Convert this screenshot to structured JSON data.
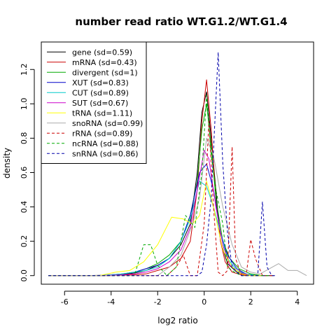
{
  "chart_data": {
    "type": "line",
    "title": "number read ratio WT.G1.2/WT.G1.4",
    "xlabel": "log2 ratio",
    "ylabel": "density",
    "xlim": [
      -7.0,
      4.7
    ],
    "ylim": [
      -0.05,
      1.36
    ],
    "xticks": [
      -6,
      -4,
      -2,
      0,
      2,
      4
    ],
    "yticks": [
      0.0,
      0.2,
      0.4,
      0.6,
      0.8,
      1.0,
      1.2
    ],
    "xtick_labels": [
      "-6",
      "-4",
      "-2",
      "0",
      "2",
      "4"
    ],
    "ytick_labels": [
      "0.0",
      "0.2",
      "0.4",
      "0.6",
      "0.8",
      "1.0",
      "1.2"
    ],
    "legend_position": "top-left",
    "grid": false,
    "series": [
      {
        "name": "gene (sd=0.59)",
        "color": "#000000",
        "dash": "solid",
        "x": [
          -6.7,
          -5.0,
          -4.0,
          -3.5,
          -3.0,
          -2.5,
          -2.0,
          -1.5,
          -1.0,
          -0.6,
          -0.3,
          -0.1,
          0.1,
          0.3,
          0.5,
          0.7,
          1.0,
          1.4,
          1.8,
          2.2,
          2.6,
          3.0
        ],
        "y": [
          0.0,
          0.0,
          0.003,
          0.008,
          0.015,
          0.03,
          0.06,
          0.1,
          0.18,
          0.3,
          0.6,
          0.95,
          1.07,
          0.8,
          0.5,
          0.2,
          0.07,
          0.02,
          0.005,
          0.002,
          0.0,
          0.0
        ]
      },
      {
        "name": "mRNA (sd=0.43)",
        "color": "#cc0000",
        "dash": "solid",
        "x": [
          -6.7,
          -4.0,
          -3.0,
          -2.5,
          -2.0,
          -1.5,
          -1.0,
          -0.6,
          -0.3,
          -0.1,
          0.1,
          0.3,
          0.5,
          0.7,
          0.9,
          1.2,
          1.6,
          2.0,
          2.5
        ],
        "y": [
          0.0,
          0.0,
          0.005,
          0.01,
          0.03,
          0.05,
          0.1,
          0.2,
          0.5,
          0.9,
          1.14,
          0.85,
          0.45,
          0.2,
          0.08,
          0.02,
          0.005,
          0.0,
          0.0
        ]
      },
      {
        "name": "divergent (sd=1)",
        "color": "#00aa00",
        "dash": "solid",
        "x": [
          -6.7,
          -4.5,
          -3.5,
          -3.0,
          -2.5,
          -2.0,
          -1.5,
          -1.0,
          -0.6,
          -0.3,
          -0.1,
          0.1,
          0.3,
          0.5,
          0.8,
          1.1,
          1.5,
          2.0,
          2.5
        ],
        "y": [
          0.0,
          0.0,
          0.01,
          0.02,
          0.04,
          0.07,
          0.12,
          0.2,
          0.35,
          0.55,
          0.85,
          1.0,
          0.75,
          0.45,
          0.2,
          0.1,
          0.04,
          0.01,
          0.0
        ]
      },
      {
        "name": "XUT (sd=0.83)",
        "color": "#0000cc",
        "dash": "solid",
        "x": [
          -6.7,
          -4.5,
          -3.5,
          -3.0,
          -2.5,
          -2.0,
          -1.5,
          -1.0,
          -0.6,
          -0.2,
          0.1,
          0.4,
          0.7,
          1.0,
          1.4,
          1.8,
          2.2,
          2.6
        ],
        "y": [
          0.0,
          0.0,
          0.01,
          0.02,
          0.04,
          0.06,
          0.1,
          0.2,
          0.35,
          0.6,
          0.65,
          0.5,
          0.25,
          0.12,
          0.04,
          0.01,
          0.0,
          0.0
        ]
      },
      {
        "name": "CUT (sd=0.89)",
        "color": "#00cccc",
        "dash": "solid",
        "x": [
          -6.7,
          -4.5,
          -3.5,
          -3.0,
          -2.5,
          -2.0,
          -1.5,
          -1.0,
          -0.6,
          -0.2,
          0.1,
          0.4,
          0.7,
          1.0,
          1.4,
          1.8,
          2.2
        ],
        "y": [
          0.0,
          0.0,
          0.01,
          0.02,
          0.03,
          0.05,
          0.1,
          0.2,
          0.33,
          0.55,
          0.52,
          0.4,
          0.25,
          0.1,
          0.03,
          0.01,
          0.0
        ]
      },
      {
        "name": "SUT (sd=0.67)",
        "color": "#cc00cc",
        "dash": "solid",
        "x": [
          -6.7,
          -4.5,
          -3.5,
          -3.0,
          -2.5,
          -2.0,
          -1.5,
          -1.0,
          -0.6,
          -0.3,
          0.0,
          0.2,
          0.5,
          0.8,
          1.1,
          1.5,
          2.0,
          2.5
        ],
        "y": [
          0.0,
          0.0,
          0.005,
          0.01,
          0.02,
          0.04,
          0.08,
          0.15,
          0.28,
          0.5,
          0.73,
          0.68,
          0.4,
          0.18,
          0.06,
          0.02,
          0.0,
          0.0
        ]
      },
      {
        "name": "tRNA (sd=1.11)",
        "color": "#ffff00",
        "dash": "solid",
        "x": [
          -6.7,
          -4.5,
          -3.8,
          -3.2,
          -2.6,
          -2.0,
          -1.4,
          -0.9,
          -0.5,
          -0.2,
          0.1,
          0.4,
          0.8,
          1.2,
          1.6,
          2.0,
          2.5
        ],
        "y": [
          0.0,
          0.0,
          0.02,
          0.03,
          0.08,
          0.18,
          0.34,
          0.33,
          0.3,
          0.35,
          0.55,
          0.4,
          0.15,
          0.05,
          0.01,
          0.0,
          0.0
        ]
      },
      {
        "name": "snoRNA (sd=0.99)",
        "color": "#aaaaaa",
        "dash": "solid",
        "x": [
          -6.7,
          -2.0,
          -1.5,
          -1.0,
          -0.5,
          -0.2,
          0.1,
          0.4,
          0.8,
          1.2,
          1.6,
          2.0,
          2.4,
          2.8,
          3.2,
          3.6,
          4.0,
          4.4
        ],
        "y": [
          0.0,
          0.0,
          0.05,
          0.12,
          0.3,
          0.45,
          0.8,
          0.7,
          0.4,
          0.18,
          0.05,
          0.02,
          0.01,
          0.04,
          0.07,
          0.03,
          0.03,
          0.0
        ]
      },
      {
        "name": "rRNA (sd=0.89)",
        "color": "#cc0000",
        "dash": "dashed",
        "x": [
          -6.7,
          -1.6,
          -1.2,
          -0.9,
          -0.6,
          -0.3,
          0.0,
          0.2,
          0.4,
          0.6,
          0.8,
          1.0,
          1.2,
          1.35,
          1.6,
          1.8,
          2.0,
          2.2,
          2.5,
          2.8,
          3.0
        ],
        "y": [
          0.0,
          0.0,
          0.05,
          0.12,
          0.0,
          0.0,
          0.3,
          0.9,
          0.4,
          0.02,
          0.0,
          0.03,
          0.75,
          0.1,
          0.0,
          0.0,
          0.21,
          0.1,
          0.0,
          0.0,
          0.0
        ]
      },
      {
        "name": "ncRNA (sd=0.88)",
        "color": "#00aa00",
        "dash": "dashed",
        "x": [
          -6.7,
          -3.0,
          -2.6,
          -2.3,
          -2.0,
          -1.6,
          -1.2,
          -0.8,
          -0.4,
          -0.1,
          0.1,
          0.3,
          0.5,
          0.8,
          1.0,
          1.3,
          1.6,
          2.0,
          2.4,
          2.8
        ],
        "y": [
          0.0,
          0.0,
          0.18,
          0.18,
          0.06,
          0.0,
          0.05,
          0.35,
          0.28,
          0.6,
          1.05,
          0.7,
          0.5,
          0.3,
          0.05,
          0.02,
          0.0,
          0.0,
          0.0,
          0.0
        ]
      },
      {
        "name": "snRNA (sd=0.86)",
        "color": "#0000aa",
        "dash": "dashed",
        "x": [
          -6.7,
          -0.3,
          -0.1,
          0.1,
          0.3,
          0.6,
          0.8,
          1.0,
          1.2,
          1.4,
          1.6,
          1.8,
          2.0,
          2.3,
          2.5,
          2.7,
          2.9,
          3.1
        ],
        "y": [
          0.0,
          0.0,
          0.02,
          0.18,
          0.45,
          1.3,
          0.65,
          0.25,
          0.05,
          0.02,
          0.0,
          0.0,
          0.0,
          0.0,
          0.43,
          0.05,
          0.0,
          0.0
        ]
      }
    ]
  }
}
